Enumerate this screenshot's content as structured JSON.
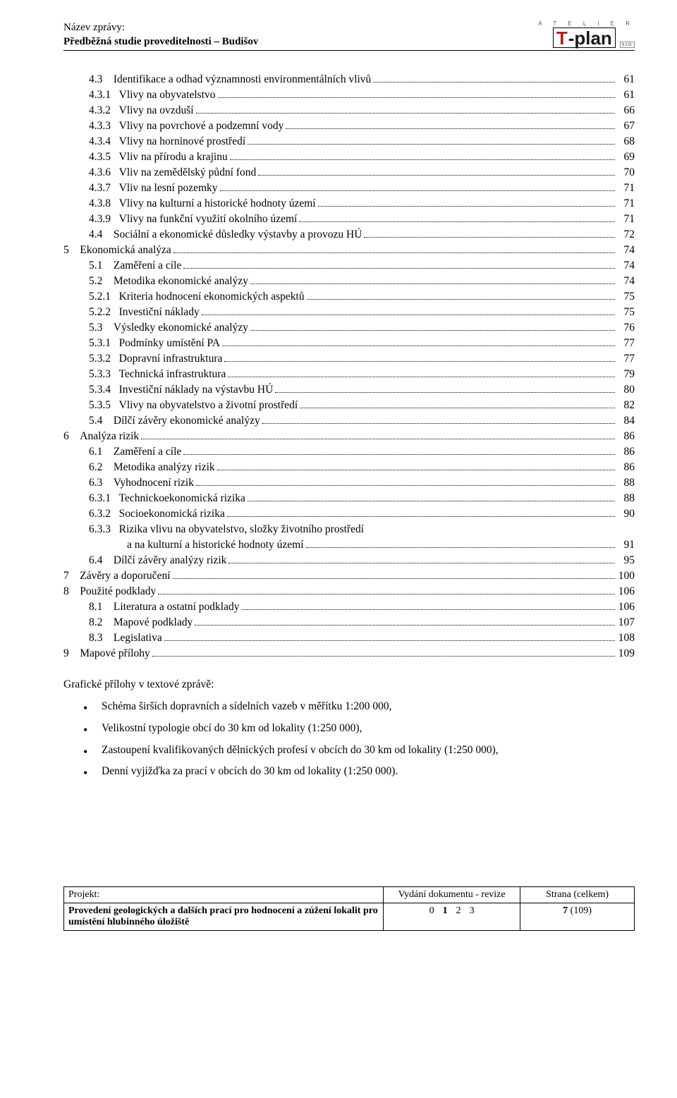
{
  "header": {
    "label": "Název zprávy:",
    "title": "Předběžná studie proveditelnosti – Budišov",
    "logo": {
      "atelier": "A T E L I E R",
      "t": "T",
      "plan": "-plan",
      "sro": "s.r.o."
    }
  },
  "toc": [
    {
      "lvl": 2,
      "num": "4.3",
      "text": "Identifikace a odhad významnosti environmentálních vlivů",
      "page": "61"
    },
    {
      "lvl": 3,
      "num": "4.3.1",
      "text": "Vlivy na obyvatelstvo",
      "page": "61"
    },
    {
      "lvl": 3,
      "num": "4.3.2",
      "text": "Vlivy na ovzduší",
      "page": "66"
    },
    {
      "lvl": 3,
      "num": "4.3.3",
      "text": "Vlivy na povrchové a podzemní vody",
      "page": "67"
    },
    {
      "lvl": 3,
      "num": "4.3.4",
      "text": "Vlivy na horninové prostředí",
      "page": "68"
    },
    {
      "lvl": 3,
      "num": "4.3.5",
      "text": "Vliv na přírodu a krajinu",
      "page": "69"
    },
    {
      "lvl": 3,
      "num": "4.3.6",
      "text": "Vliv na zemědělský půdní fond",
      "page": "70"
    },
    {
      "lvl": 3,
      "num": "4.3.7",
      "text": "Vliv na lesní pozemky",
      "page": "71"
    },
    {
      "lvl": 3,
      "num": "4.3.8",
      "text": "Vlivy na kulturní a historické hodnoty území",
      "page": "71"
    },
    {
      "lvl": 3,
      "num": "4.3.9",
      "text": "Vlivy na funkční využití okolního území",
      "page": "71"
    },
    {
      "lvl": 2,
      "num": "4.4",
      "text": "Sociální a ekonomické důsledky výstavby a provozu HÚ",
      "page": "72"
    },
    {
      "lvl": 1,
      "num": "5",
      "text": "Ekonomická analýza",
      "page": "74"
    },
    {
      "lvl": 2,
      "num": "5.1",
      "text": "Zaměření a cíle",
      "page": "74"
    },
    {
      "lvl": 2,
      "num": "5.2",
      "text": "Metodika ekonomické analýzy",
      "page": "74"
    },
    {
      "lvl": 3,
      "num": "5.2.1",
      "text": "Kriteria hodnocení ekonomických aspektů",
      "page": "75"
    },
    {
      "lvl": 3,
      "num": "5.2.2",
      "text": "Investiční náklady",
      "page": "75"
    },
    {
      "lvl": 2,
      "num": "5.3",
      "text": "Výsledky ekonomické analýzy",
      "page": "76"
    },
    {
      "lvl": 3,
      "num": "5.3.1",
      "text": "Podmínky umístění PA",
      "page": "77"
    },
    {
      "lvl": 3,
      "num": "5.3.2",
      "text": "Dopravní infrastruktura",
      "page": "77"
    },
    {
      "lvl": 3,
      "num": "5.3.3",
      "text": "Technická infrastruktura",
      "page": "79"
    },
    {
      "lvl": 3,
      "num": "5.3.4",
      "text": "Investiční náklady na výstavbu HÚ",
      "page": "80"
    },
    {
      "lvl": 3,
      "num": "5.3.5",
      "text": "Vlivy na obyvatelstvo a životní prostředí",
      "page": "82"
    },
    {
      "lvl": 2,
      "num": "5.4",
      "text": "Dílčí závěry ekonomické analýzy",
      "page": "84"
    },
    {
      "lvl": 1,
      "num": "6",
      "text": "Analýza rizik",
      "page": "86"
    },
    {
      "lvl": 2,
      "num": "6.1",
      "text": "Zaměření a cíle",
      "page": "86"
    },
    {
      "lvl": 2,
      "num": "6.2",
      "text": "Metodika analýzy rizik",
      "page": "86"
    },
    {
      "lvl": 2,
      "num": "6.3",
      "text": "Vyhodnocení rizik",
      "page": "88"
    },
    {
      "lvl": 3,
      "num": "6.3.1",
      "text": "Technickoekonomická rizika",
      "page": "88"
    },
    {
      "lvl": 3,
      "num": "6.3.2",
      "text": "Socioekonomická rizika",
      "page": "90"
    },
    {
      "lvl": 3,
      "num": "6.3.3",
      "text": "Rizika vlivu na obyvatelstvo, složky životního prostředí",
      "page": ""
    },
    {
      "lvl": 4,
      "num": "",
      "text": "a na kulturní a historické hodnoty území",
      "page": "91"
    },
    {
      "lvl": 2,
      "num": "6.4",
      "text": "Dílčí závěry analýzy rizik",
      "page": "95"
    },
    {
      "lvl": 1,
      "num": "7",
      "text": "Závěry a doporučení",
      "page": "100"
    },
    {
      "lvl": 1,
      "num": "8",
      "text": "Použité podklady",
      "page": "106"
    },
    {
      "lvl": 2,
      "num": "8.1",
      "text": "Literatura a ostatní podklady",
      "page": "106"
    },
    {
      "lvl": 2,
      "num": "8.2",
      "text": "Mapové podklady",
      "page": "107"
    },
    {
      "lvl": 2,
      "num": "8.3",
      "text": "Legislativa",
      "page": "108"
    },
    {
      "lvl": 1,
      "num": "9",
      "text": "Mapové přílohy",
      "page": "109"
    }
  ],
  "appendix": {
    "title": "Grafické přílohy v textové zprávě:",
    "items": [
      "Schéma širších dopravních a sídelních vazeb v měřítku 1:200 000,",
      "Velikostní typologie obcí do 30 km od lokality (1:250 000),",
      "Zastoupení kvalifikovaných dělnických profesí v obcích do 30 km od lokality (1:250 000),",
      "Denní vyjížďka za prací v obcích do 30 km od lokality (1:250 000)."
    ]
  },
  "footer": {
    "col1_label": "Projekt:",
    "col1_text": "Provedení geologických a dalších prací pro hodnocení a zúžení lokalit pro umístění hlubinného úložiště",
    "col2_label": "Vydání dokumentu - revize",
    "revisions": [
      "0",
      "1",
      "2",
      "3"
    ],
    "active_rev": "1",
    "col3_label": "Strana (celkem)",
    "page_current": "7",
    "page_total": "(109)"
  }
}
